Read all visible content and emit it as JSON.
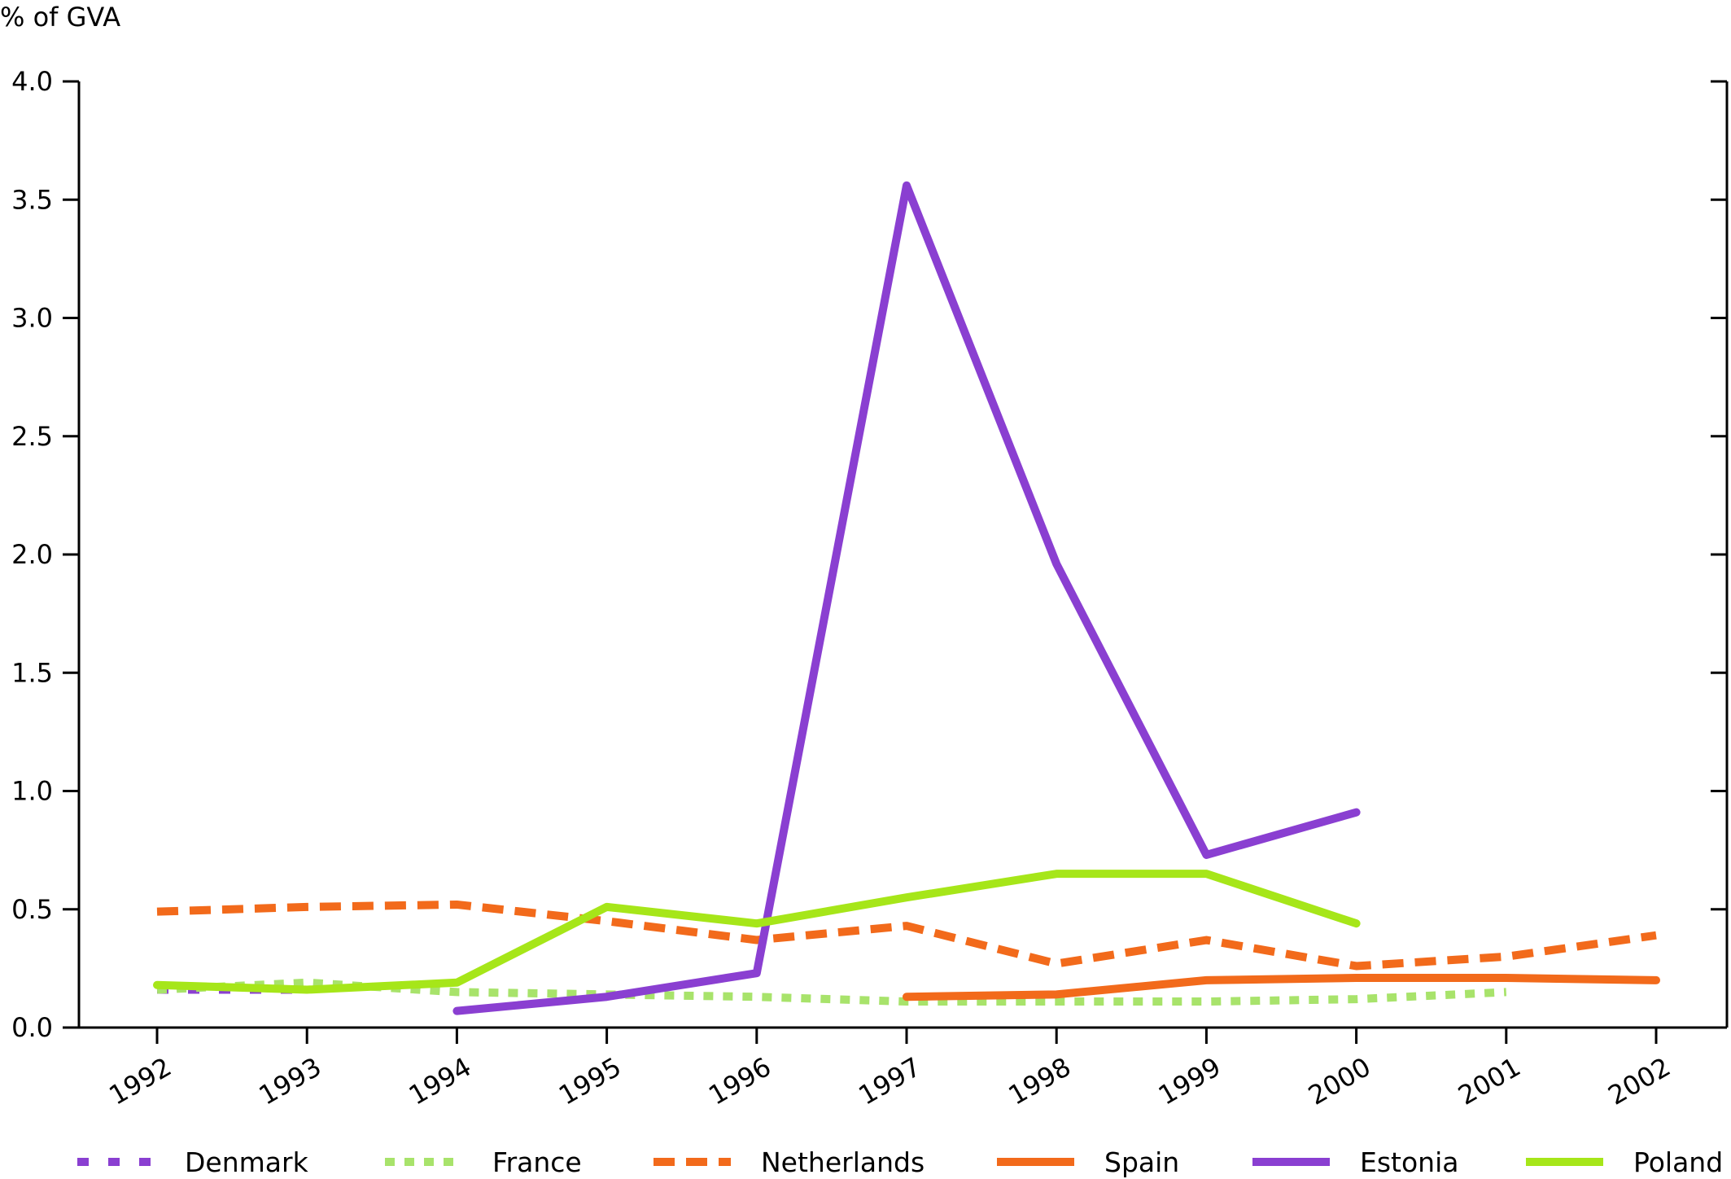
{
  "chart_data": {
    "type": "line",
    "ylabel": "% of GVA",
    "ylim": [
      0,
      4.0
    ],
    "yticks": [
      "0.0",
      "0.5",
      "1.0",
      "1.5",
      "2.0",
      "2.5",
      "3.0",
      "3.5",
      "4.0"
    ],
    "ytick_values": [
      0,
      0.5,
      1.0,
      1.5,
      2.0,
      2.5,
      3.0,
      3.5,
      4.0
    ],
    "categories": [
      "1992",
      "1993",
      "1994",
      "1995",
      "1996",
      "1997",
      "1998",
      "1999",
      "2000",
      "2001",
      "2002"
    ],
    "legend_position": "bottom",
    "series": [
      {
        "name": "Denmark",
        "color": "#8a3fd1",
        "style": "dotted-dash",
        "values": [
          0.16,
          0.16,
          null,
          null,
          null,
          null,
          null,
          null,
          null,
          null,
          null
        ]
      },
      {
        "name": "France",
        "color": "#a8e36b",
        "style": "dotted",
        "values": [
          0.16,
          0.19,
          0.15,
          0.14,
          0.13,
          0.11,
          0.11,
          0.11,
          0.12,
          0.15,
          null
        ]
      },
      {
        "name": "Netherlands",
        "color": "#f26a1b",
        "style": "dashed",
        "values": [
          0.49,
          0.51,
          0.52,
          0.45,
          0.37,
          0.43,
          0.27,
          0.37,
          0.26,
          0.3,
          0.39
        ]
      },
      {
        "name": "Spain",
        "color": "#f26a1b",
        "style": "solid",
        "values": [
          null,
          null,
          null,
          null,
          null,
          0.13,
          0.14,
          0.2,
          0.21,
          0.21,
          0.2
        ]
      },
      {
        "name": "Estonia",
        "color": "#8a3fd1",
        "style": "solid",
        "values": [
          null,
          null,
          0.07,
          0.13,
          0.23,
          3.56,
          1.96,
          0.73,
          0.91,
          null,
          null
        ]
      },
      {
        "name": "Poland",
        "color": "#a6e619",
        "style": "solid",
        "values": [
          0.18,
          0.16,
          0.19,
          0.51,
          0.44,
          0.55,
          0.65,
          0.65,
          0.44,
          null,
          null
        ]
      }
    ]
  }
}
